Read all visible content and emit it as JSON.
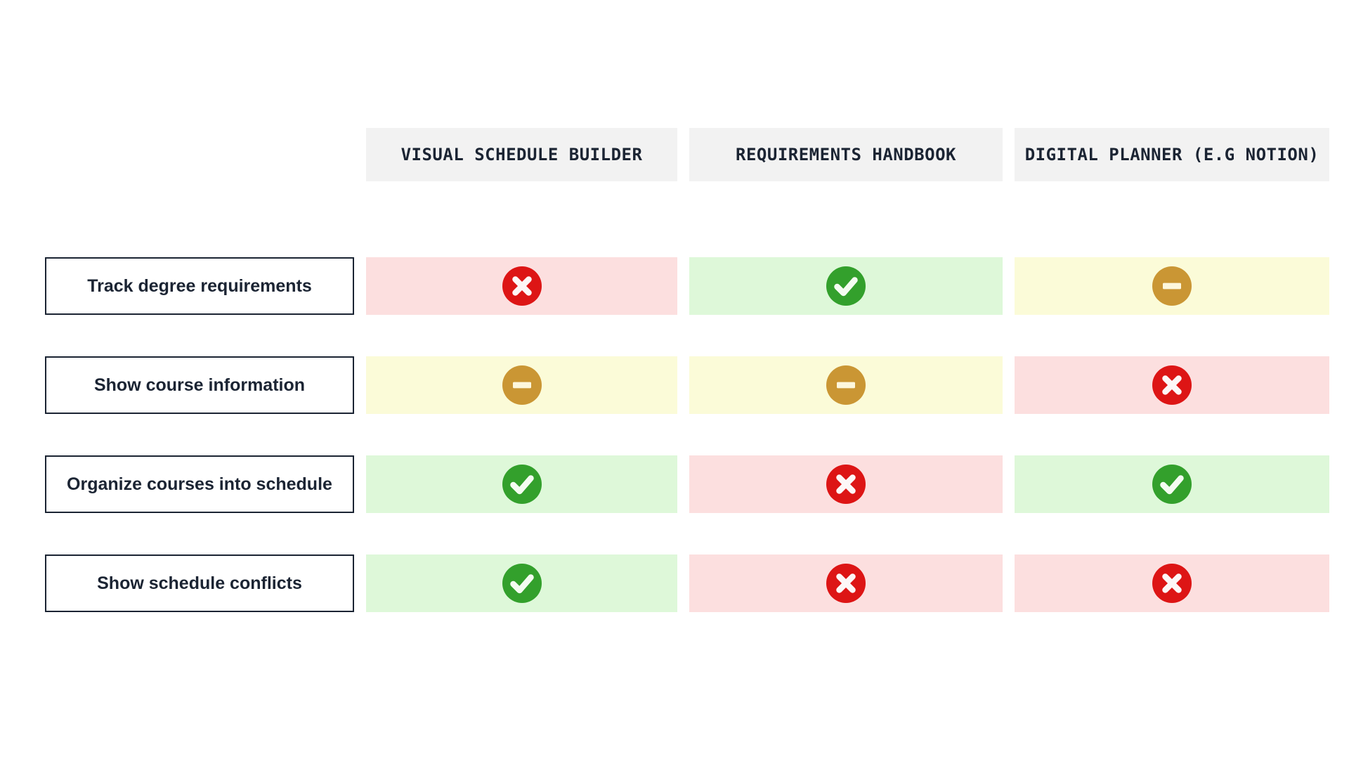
{
  "table": {
    "columns": [
      {
        "label": "VISUAL SCHEDULE BUILDER"
      },
      {
        "label": "REQUIREMENTS HANDBOOK"
      },
      {
        "label": "DIGITAL PLANNER (E.G NOTION)"
      }
    ],
    "rows": [
      {
        "label": "Track degree requirements",
        "cells": [
          "no",
          "yes",
          "partial"
        ]
      },
      {
        "label": "Show course information",
        "cells": [
          "partial",
          "partial",
          "no"
        ]
      },
      {
        "label": "Organize courses into schedule",
        "cells": [
          "yes",
          "no",
          "yes"
        ]
      },
      {
        "label": "Show schedule conflicts",
        "cells": [
          "yes",
          "no",
          "no"
        ]
      }
    ]
  },
  "statuses": {
    "yes": {
      "icon": "check-circle-icon",
      "circle_color": "#33a02c",
      "cell_bg": "#def8d9",
      "mark_color": "#f4fcf1"
    },
    "no": {
      "icon": "x-circle-icon",
      "circle_color": "#dd1515",
      "cell_bg": "#fcdfdf",
      "mark_color": "#fdf7f7"
    },
    "partial": {
      "icon": "minus-circle-icon",
      "circle_color": "#ca9634",
      "cell_bg": "#fbfbd8",
      "mark_color": "#fdf7dd"
    }
  },
  "colors": {
    "page_bg": "#ffffff",
    "header_bg": "#f2f2f2",
    "text": "#1b2433",
    "row_label_border": "#1b2433",
    "row_label_bg": "#ffffff"
  },
  "chart_data": {
    "type": "table",
    "title": "",
    "columns": [
      "VISUAL SCHEDULE BUILDER",
      "REQUIREMENTS HANDBOOK",
      "DIGITAL PLANNER (E.G NOTION)"
    ],
    "row_labels": [
      "Track degree requirements",
      "Show course information",
      "Organize courses into schedule",
      "Show schedule conflicts"
    ],
    "values": [
      [
        "no",
        "yes",
        "partial"
      ],
      [
        "partial",
        "partial",
        "no"
      ],
      [
        "yes",
        "no",
        "yes"
      ],
      [
        "yes",
        "no",
        "no"
      ]
    ],
    "value_legend": {
      "yes": "green check circle",
      "no": "red x circle",
      "partial": "amber minus circle"
    }
  }
}
